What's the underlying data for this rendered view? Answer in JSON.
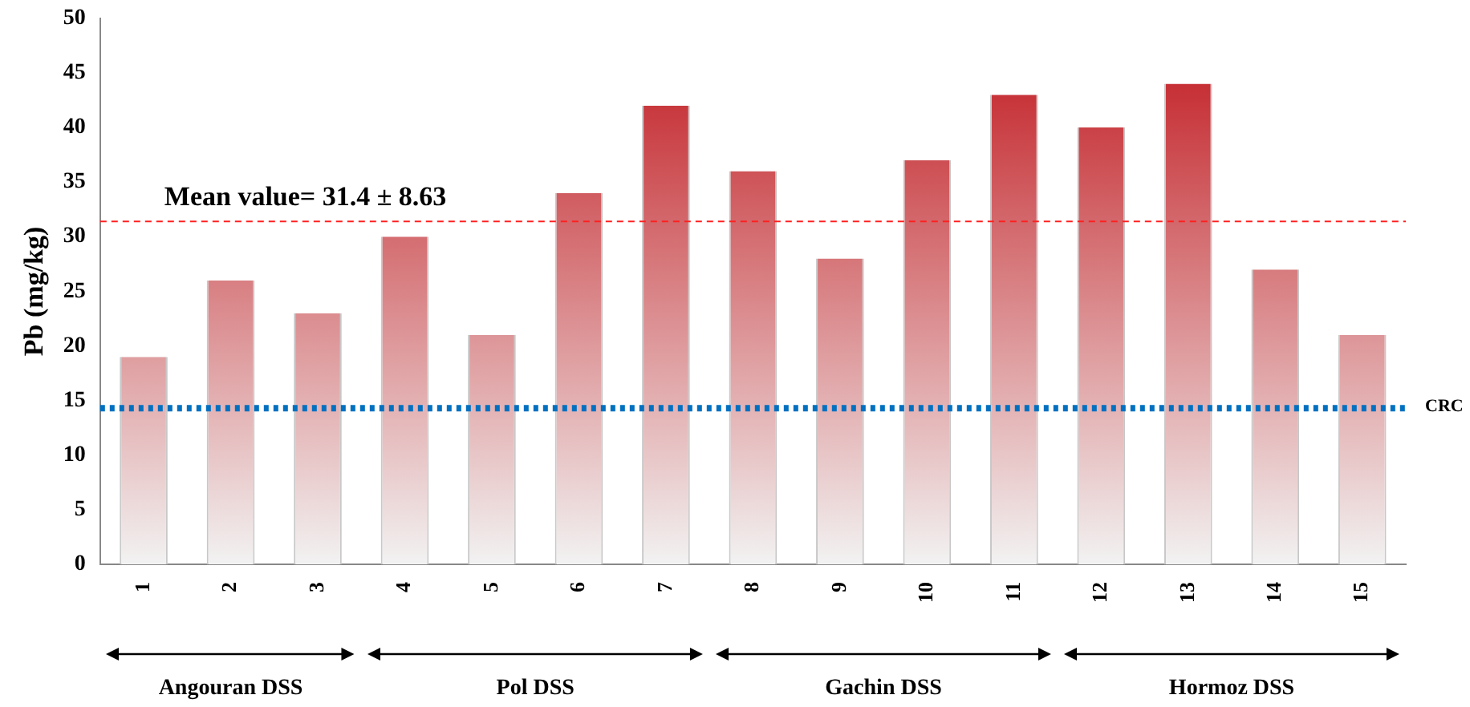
{
  "chart_data": {
    "type": "bar",
    "ylabel": "Pb (mg/kg)",
    "categories": [
      "1",
      "2",
      "3",
      "4",
      "5",
      "6",
      "7",
      "8",
      "9",
      "10",
      "11",
      "12",
      "13",
      "14",
      "15"
    ],
    "values": [
      19,
      26,
      23,
      30,
      21,
      34,
      42,
      36,
      28,
      37,
      43,
      40,
      44,
      27,
      21
    ],
    "color": "#c0151b",
    "ylim": [
      0,
      50
    ],
    "yticks": [
      0,
      5,
      10,
      15,
      20,
      25,
      30,
      35,
      40,
      45,
      50
    ],
    "grid": false,
    "legend": false,
    "ref_lines": [
      {
        "axis": "y",
        "value": 31.4,
        "label": "Mean value= 31.4 ± 8.63",
        "color": "#ff2020",
        "line_style": "dashed"
      },
      {
        "axis": "y",
        "value": 14.3,
        "label": "CRC",
        "color": "#0070c0",
        "line_style": "dotted"
      }
    ],
    "annotations": [
      "Angouran  DSS",
      "Pol DSS",
      "Gachin DSS",
      "Hormoz DSS"
    ]
  }
}
